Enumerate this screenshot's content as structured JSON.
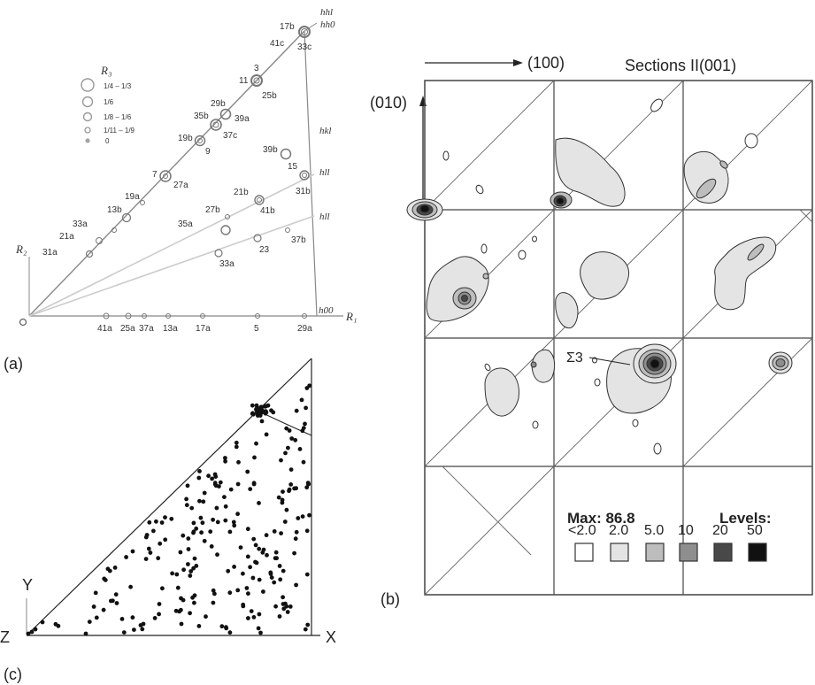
{
  "panel_a": {
    "caption": "(a)",
    "r3_label": "R₃",
    "r2_label": "R₂",
    "r1_label": "R₁",
    "legend_fractions": [
      "1/4 – 1/3",
      "1/6",
      "1/8 – 1/6",
      "1/11 – 1/9",
      "0"
    ],
    "corner_labels": {
      "hhl": "hhl",
      "hh0": "hh0",
      "hkl": "hkl",
      "hll_upper": "hll",
      "hll_lower": "hll",
      "h00": "h00"
    },
    "diagonal_points": [
      "17b",
      "41c",
      "33c",
      "3",
      "11",
      "25b",
      "29b",
      "35b",
      "39a",
      "37c",
      "19b",
      "9",
      "7",
      "27a",
      "19a",
      "13b",
      "33a",
      "21a",
      "31a"
    ],
    "inner_points": [
      "39b",
      "15",
      "31b",
      "21b",
      "41b",
      "27b",
      "35a",
      "37b",
      "23",
      "33a"
    ],
    "axis_points": [
      "41a",
      "25a",
      "37a",
      "13a",
      "17a",
      "5",
      "29a"
    ]
  },
  "panel_b": {
    "caption": "(b)",
    "title": "Sections II(001)",
    "x_dir": "(100)",
    "y_dir": "(010)",
    "sigma_label": "Σ3",
    "max_label": "Max: 86.8",
    "levels_label": "Levels:",
    "levels": [
      {
        "label": "<2.0",
        "color": "#ffffff"
      },
      {
        "label": "2.0",
        "color": "#e4e4e4"
      },
      {
        "label": "5.0",
        "color": "#bdbdbd"
      },
      {
        "label": "10",
        "color": "#8e8e8e"
      },
      {
        "label": "20",
        "color": "#484848"
      },
      {
        "label": "50",
        "color": "#111111"
      }
    ]
  },
  "panel_c": {
    "caption": "(c)",
    "x_label": "X",
    "y_label": "Y",
    "z_label": "Z"
  }
}
